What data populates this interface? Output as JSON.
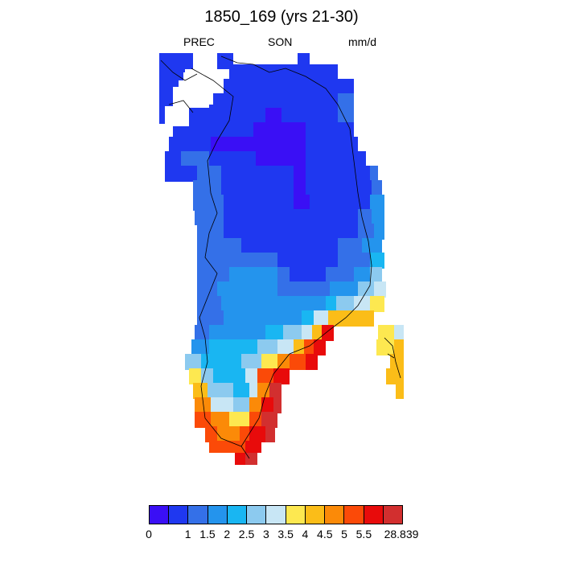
{
  "title": "1850_169 (yrs 21-30)",
  "variable_label": "PREC",
  "season_label": "SON",
  "units_label": "mm/d",
  "colorbar": {
    "colors": [
      "#3a0ff5",
      "#1f38f0",
      "#3470e8",
      "#2494ed",
      "#19b6f2",
      "#8ccaef",
      "#c8e6f5",
      "#fde850",
      "#fbbd18",
      "#fb8a08",
      "#fb4a08",
      "#e80b0b",
      "#d22f2f"
    ],
    "tick_labels": [
      "0",
      "1",
      "1.5",
      "2",
      "2.5",
      "3",
      "3.5",
      "4",
      "4.5",
      "5",
      "5.5",
      "28.839"
    ]
  },
  "map": {
    "region": "Greenland",
    "field": "precipitation",
    "note_levels": "color index 0-12 per grid cell maps to colorbar.colors"
  }
}
